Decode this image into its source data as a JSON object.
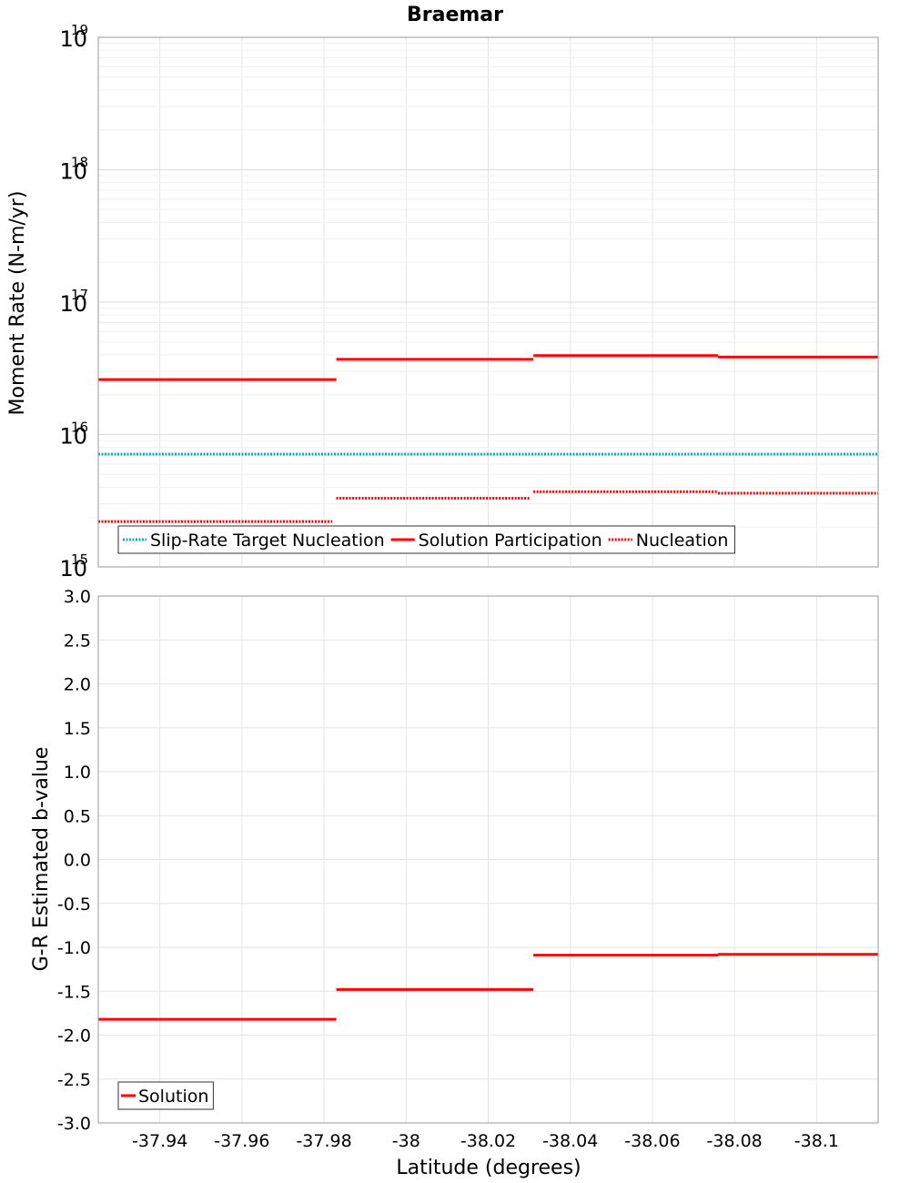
{
  "title": "Braemar",
  "chart_data": [
    {
      "type": "line",
      "ylabel": "Moment Rate (N-m/yr)",
      "yscale": "log",
      "ylim": [
        1000000000000000.0,
        1e+19
      ],
      "yticks": [
        {
          "base": "10",
          "exp": "15"
        },
        {
          "base": "10",
          "exp": "16"
        },
        {
          "base": "10",
          "exp": "17"
        },
        {
          "base": "10",
          "exp": "18"
        },
        {
          "base": "10",
          "exp": "19"
        }
      ],
      "grid": true,
      "legend_position": "bottom-left",
      "series": [
        {
          "name": "Slip-Rate Target Nucleation",
          "color": "#00b0c0",
          "style": "dotted",
          "segments": [
            {
              "x0": -37.925,
              "x1": -38.115,
              "y": 7100000000000000.0
            }
          ]
        },
        {
          "name": "Solution Participation",
          "color": "#ff0000",
          "style": "solid",
          "segments": [
            {
              "x0": -37.925,
              "x1": -37.983,
              "y": 2.6e+16
            },
            {
              "x0": -37.983,
              "x1": -38.031,
              "y": 3.7e+16
            },
            {
              "x0": -38.031,
              "x1": -38.076,
              "y": 3.95e+16
            },
            {
              "x0": -38.076,
              "x1": -38.115,
              "y": 3.85e+16
            }
          ]
        },
        {
          "name": "Nucleation",
          "color": "#ff0000",
          "style": "dotted",
          "segments": [
            {
              "x0": -37.925,
              "x1": -37.982,
              "y": 2200000000000000.0
            },
            {
              "x0": -37.983,
              "x1": -38.03,
              "y": 3300000000000000.0
            },
            {
              "x0": -38.031,
              "x1": -38.076,
              "y": 3700000000000000.0
            },
            {
              "x0": -38.076,
              "x1": -38.115,
              "y": 3600000000000000.0
            }
          ]
        }
      ]
    },
    {
      "type": "line",
      "xlabel": "Latitude (degrees)",
      "ylabel": "G-R Estimated b-value",
      "xlim": [
        -37.925,
        -38.115
      ],
      "ylim": [
        -3.0,
        3.0
      ],
      "xticks": [
        {
          "v": -37.94,
          "label": "-37.94"
        },
        {
          "v": -37.96,
          "label": "-37.96"
        },
        {
          "v": -37.98,
          "label": "-37.98"
        },
        {
          "v": -38.0,
          "label": "-38"
        },
        {
          "v": -38.02,
          "label": "-38.02"
        },
        {
          "v": -38.04,
          "label": "-38.04"
        },
        {
          "v": -38.06,
          "label": "-38.06"
        },
        {
          "v": -38.08,
          "label": "-38.08"
        },
        {
          "v": -38.1,
          "label": "-38.1"
        }
      ],
      "yticks": [
        {
          "v": 3.0,
          "label": "3.0"
        },
        {
          "v": 2.5,
          "label": "2.5"
        },
        {
          "v": 2.0,
          "label": "2.0"
        },
        {
          "v": 1.5,
          "label": "1.5"
        },
        {
          "v": 1.0,
          "label": "1.0"
        },
        {
          "v": 0.5,
          "label": "0.5"
        },
        {
          "v": 0.0,
          "label": "0.0"
        },
        {
          "v": -0.5,
          "label": "-0.5"
        },
        {
          "v": -1.0,
          "label": "-1.0"
        },
        {
          "v": -1.5,
          "label": "-1.5"
        },
        {
          "v": -2.0,
          "label": "-2.0"
        },
        {
          "v": -2.5,
          "label": "-2.5"
        },
        {
          "v": -3.0,
          "label": "-3.0"
        }
      ],
      "grid": true,
      "legend_position": "bottom-left",
      "series": [
        {
          "name": "Solution",
          "color": "#ff0000",
          "style": "solid",
          "segments": [
            {
              "x0": -37.925,
              "x1": -37.983,
              "y": -1.82
            },
            {
              "x0": -37.983,
              "x1": -38.031,
              "y": -1.48
            },
            {
              "x0": -38.031,
              "x1": -38.076,
              "y": -1.09
            },
            {
              "x0": -38.076,
              "x1": -38.115,
              "y": -1.08
            }
          ]
        }
      ]
    }
  ]
}
